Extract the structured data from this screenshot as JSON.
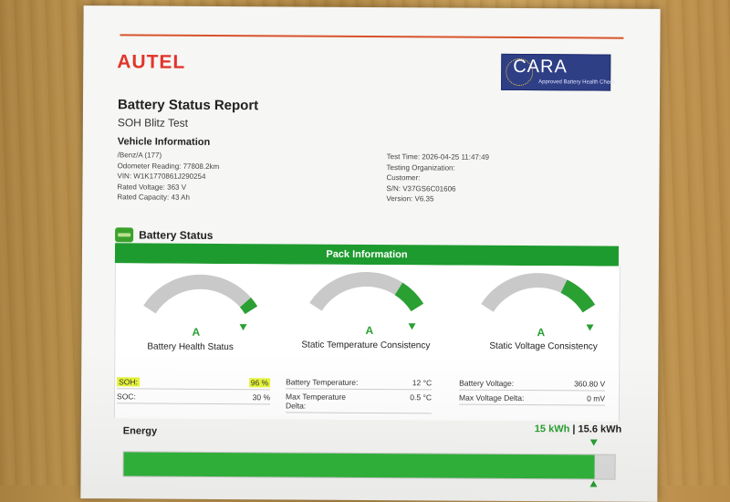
{
  "header": {
    "brand": "AUTEL",
    "badge": {
      "title": "CARA",
      "subtitle": "Approved Battery Health Check"
    },
    "title": "Battery Status Report",
    "subtitle": "SOH Blitz Test"
  },
  "vehicle": {
    "heading": "Vehicle Information",
    "left": [
      "/Benz/A (177)",
      "Odometer Reading: 77808.2km",
      "VIN: W1K1770861J290254",
      "Rated Voltage: 363 V",
      "Rated Capacity: 43 Ah"
    ],
    "right": [
      "Test Time: 2026-04-25 11:47:49",
      "Testing Organization:",
      "Customer:",
      "S/N: V37GS6C01606",
      "Version: V6.35"
    ]
  },
  "battery_status": {
    "heading": "Battery Status",
    "pack_heading": "Pack Information",
    "gauges": [
      {
        "label": "Battery Health Status",
        "grade": "A",
        "fill": 0.92
      },
      {
        "label": "Static Temperature Consistency",
        "grade": "A",
        "fill": 0.78
      },
      {
        "label": "Static Voltage Consistency",
        "grade": "A",
        "fill": 0.72
      }
    ],
    "tables": [
      [
        {
          "key": "SOH:",
          "value": "96 %"
        },
        {
          "key": "SOC:",
          "value": "30 %"
        }
      ],
      [
        {
          "key": "Battery Temperature:",
          "value": "12 °C"
        },
        {
          "key": "Max Temperature Delta:",
          "value": "0.5 °C"
        }
      ],
      [
        {
          "key": "Battery Voltage:",
          "value": "360.80 V"
        },
        {
          "key": "Max Voltage Delta:",
          "value": "0 mV"
        }
      ]
    ]
  },
  "energy": {
    "label": "Energy",
    "current": "15 kWh",
    "separator": " | ",
    "total": "15.6 kWh",
    "fraction": 0.96
  },
  "colors": {
    "accent_green": "#2aa033",
    "header_green": "#1e9b2f",
    "brand_red": "#e2342a",
    "badge_blue": "#2f3f86",
    "highlight": "#e6f53a"
  }
}
